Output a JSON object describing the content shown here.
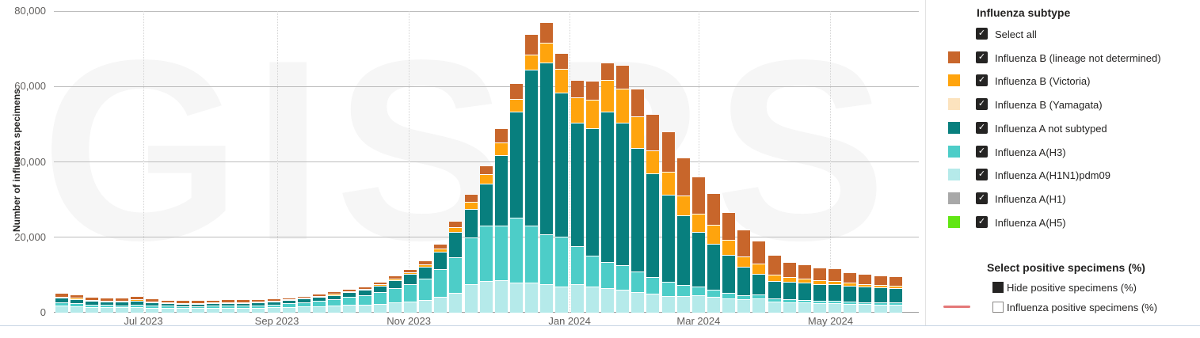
{
  "watermark": "GISRS",
  "y_axis": {
    "title": "Number of influenza specimens",
    "tick_labels": [
      "0",
      "20,000",
      "40,000",
      "60,000",
      "80,000"
    ],
    "tick_values": [
      0,
      20000,
      40000,
      60000,
      80000
    ]
  },
  "x_axis": {
    "ticks": [
      {
        "label": "Jul 2023",
        "week": 5.4
      },
      {
        "label": "Sep 2023",
        "week": 14.2
      },
      {
        "label": "Nov 2023",
        "week": 22.9
      },
      {
        "label": "Jan 2024",
        "week": 33.5
      },
      {
        "label": "Mar 2024",
        "week": 42.0
      },
      {
        "label": "May 2024",
        "week": 50.7
      }
    ]
  },
  "colors": {
    "grid": "#BDBDBD",
    "axis_text": "#605E5C",
    "text": "#252423",
    "positive_line": "#E47878"
  },
  "chart_data": {
    "type": "bar",
    "stacked": true,
    "weeks": 56,
    "title": "",
    "xlabel": "",
    "ylabel": "Number of influenza specimens",
    "ylim": [
      0,
      80000
    ],
    "grid": "horizontal solid every 20000; vertical dotted at month ticks",
    "legend_position": "right panel",
    "stack_bottom_to_top": [
      "Influenza A(H5)",
      "Influenza A(H1)",
      "Influenza A(H1N1)pdm09",
      "Influenza A(H3)",
      "Influenza A not subtyped",
      "Influenza B (Yamagata)",
      "Influenza B (Victoria)",
      "Influenza B (lineage not determined)"
    ],
    "series": [
      {
        "name": "Influenza B (lineage not determined)",
        "color": "#C8662B",
        "values": [
          1000,
          1000,
          900,
          900,
          800,
          900,
          800,
          700,
          700,
          700,
          700,
          700,
          700,
          700,
          700,
          600,
          600,
          600,
          600,
          600,
          600,
          700,
          800,
          900,
          1100,
          1200,
          1600,
          2000,
          2300,
          3700,
          4100,
          5500,
          5300,
          4300,
          4600,
          5100,
          4700,
          6300,
          7300,
          9800,
          10800,
          10100,
          9900,
          8300,
          7300,
          7100,
          6100,
          5400,
          3900,
          3800,
          3300,
          3200,
          2900,
          2700,
          2500,
          2400
        ]
      },
      {
        "name": "Influenza B (Victoria)",
        "color": "#FFA40D",
        "values": [
          300,
          300,
          200,
          200,
          200,
          300,
          200,
          200,
          200,
          200,
          200,
          200,
          200,
          200,
          200,
          200,
          200,
          200,
          300,
          300,
          300,
          300,
          400,
          500,
          600,
          900,
          1300,
          2000,
          2600,
          3500,
          3400,
          4100,
          5400,
          6300,
          6800,
          7600,
          8400,
          9000,
          8500,
          6100,
          6000,
          5100,
          4900,
          5200,
          4000,
          2800,
          2700,
          1600,
          1400,
          1200,
          1000,
          900,
          800,
          700,
          600,
          600
        ]
      },
      {
        "name": "Influenza B (Yamagata)",
        "color": "#FCE3BE",
        "values": "all-zero"
      },
      {
        "name": "Influenza A not subtyped",
        "color": "#087F7E",
        "values": [
          1200,
          1100,
          1000,
          900,
          900,
          1000,
          800,
          700,
          700,
          700,
          700,
          700,
          700,
          800,
          800,
          800,
          900,
          1000,
          1100,
          1300,
          1500,
          1800,
          2200,
          2600,
          3200,
          4600,
          6600,
          7500,
          11100,
          18600,
          28300,
          41200,
          45500,
          38200,
          32700,
          33700,
          39800,
          38000,
          32600,
          27500,
          23200,
          18600,
          14500,
          12100,
          10000,
          7400,
          5600,
          4600,
          4600,
          4500,
          4400,
          4400,
          4200,
          4100,
          4000,
          3900
        ]
      },
      {
        "name": "Influenza A(H3)",
        "color": "#4DCDC8",
        "values": [
          900,
          800,
          700,
          700,
          600,
          700,
          600,
          600,
          500,
          500,
          600,
          600,
          600,
          600,
          700,
          1000,
          1200,
          1500,
          1800,
          2100,
          2500,
          3000,
          3800,
          4600,
          5600,
          7400,
          9600,
          12500,
          14700,
          14500,
          17200,
          15200,
          13300,
          13100,
          10200,
          8200,
          7000,
          6500,
          5500,
          4400,
          3600,
          2800,
          2300,
          1800,
          1500,
          1200,
          1000,
          800,
          700,
          700,
          600,
          600,
          500,
          500,
          500,
          500
        ]
      },
      {
        "name": "Influenza A(H1N1)pdm09",
        "color": "#B5EAEA",
        "values": [
          1800,
          1700,
          1500,
          1400,
          1400,
          1500,
          1300,
          1200,
          1200,
          1200,
          1200,
          1300,
          1300,
          1300,
          1400,
          1500,
          1600,
          1700,
          1800,
          2000,
          2100,
          2400,
          2700,
          3000,
          3400,
          4200,
          5200,
          7500,
          8400,
          8600,
          7900,
          8000,
          7500,
          7000,
          7500,
          7000,
          6500,
          6000,
          5500,
          5000,
          4500,
          4500,
          4600,
          4300,
          3800,
          3500,
          3800,
          3000,
          2800,
          2700,
          2600,
          2600,
          2400,
          2300,
          2200,
          2200
        ]
      },
      {
        "name": "Influenza A(H1)",
        "color": "#A8A8A8",
        "values": "all-zero"
      },
      {
        "name": "Influenza A(H5)",
        "color": "#61E613",
        "values": "all-zero"
      }
    ]
  },
  "legend": {
    "subtype": {
      "title": "Influenza subtype",
      "items": [
        {
          "label": "Select all",
          "swatch": null,
          "checked": true
        },
        {
          "label": "Influenza B (lineage not determined)",
          "swatch": "#C8662B",
          "checked": true
        },
        {
          "label": "Influenza B (Victoria)",
          "swatch": "#FFA40D",
          "checked": true
        },
        {
          "label": "Influenza B (Yamagata)",
          "swatch": "#FCE3BE",
          "checked": true
        },
        {
          "label": "Influenza A not subtyped",
          "swatch": "#087F7E",
          "checked": true
        },
        {
          "label": "Influenza A(H3)",
          "swatch": "#4DCDC8",
          "checked": true
        },
        {
          "label": "Influenza A(H1N1)pdm09",
          "swatch": "#B5EAEA",
          "checked": true
        },
        {
          "label": "Influenza A(H1)",
          "swatch": "#A8A8A8",
          "checked": true
        },
        {
          "label": "Influenza A(H5)",
          "swatch": "#61E613",
          "checked": true
        }
      ]
    },
    "positive": {
      "title": "Select positive specimens (%)",
      "items": [
        {
          "label": "Hide positive specimens (%)",
          "checkbox": "filled",
          "line_color": null
        },
        {
          "label": "Influenza positive specimens (%)",
          "checkbox": "empty",
          "line_color": "#E47878"
        }
      ]
    }
  }
}
